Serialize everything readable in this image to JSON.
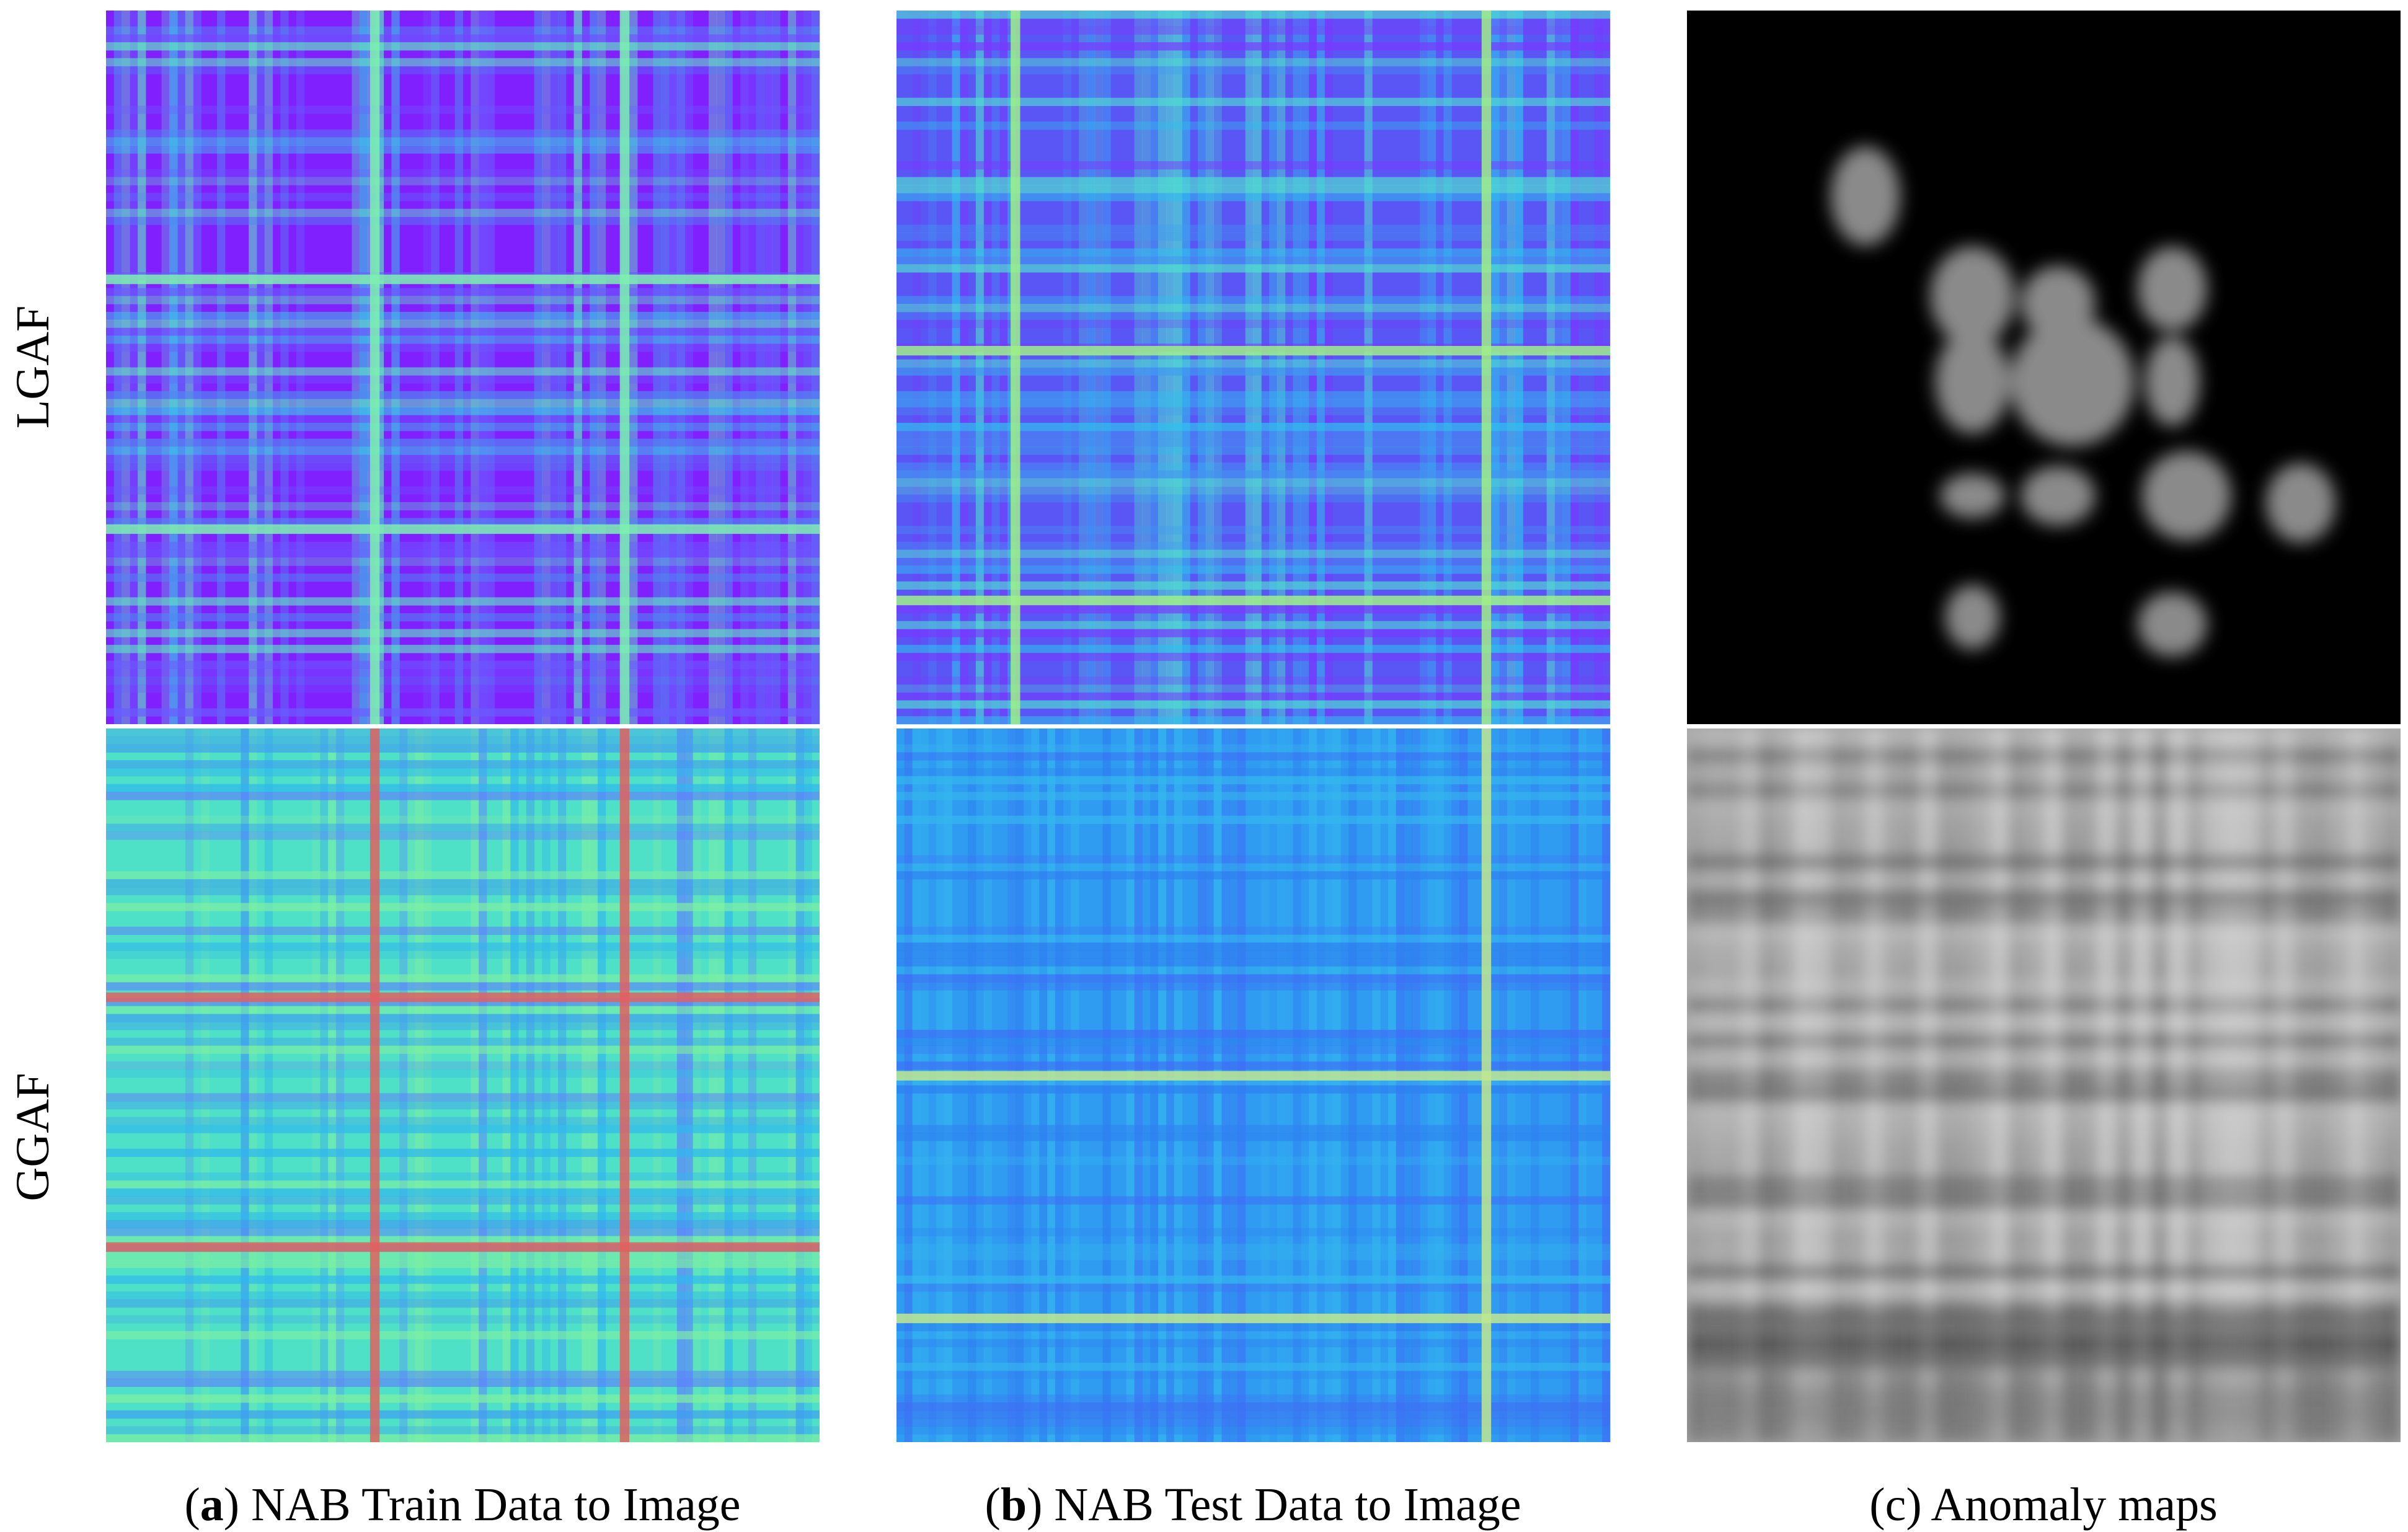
{
  "row_labels": [
    "LGAF",
    "GGAF"
  ],
  "captions": [
    {
      "open": "(",
      "label": "a",
      "rest": ") NAB Train Data to Image"
    },
    {
      "open": "(",
      "label": "b",
      "rest": ") NAB Test Data to Image"
    },
    {
      "text": "(c) Anomaly maps"
    }
  ]
}
